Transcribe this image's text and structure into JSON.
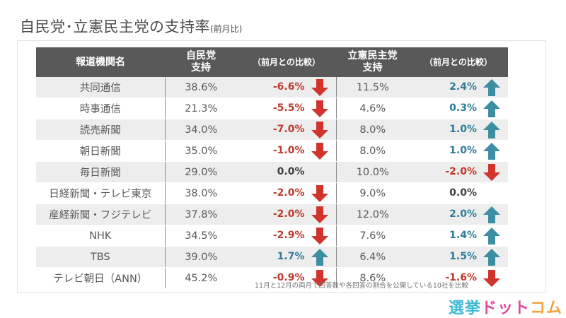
{
  "title": "自民党･立憲民主党の支持率",
  "subtitle": "(前月比)",
  "header": {
    "org": "報道機関名",
    "ldp": "自民党\n支持",
    "ldp_change": "（前月との比較）",
    "cdp": "立憲民主党\n支持",
    "cdp_change": "（前月との比較）"
  },
  "colors": {
    "up": "#3d8ea3",
    "down": "#d0342c",
    "header_bg": "#595959",
    "row_shade": "#ededed"
  },
  "chart_data": {
    "type": "table",
    "columns": [
      "報道機関名",
      "自民党支持",
      "（前月との比較）",
      "立憲民主党支持",
      "（前月との比較）"
    ],
    "rows": [
      {
        "org": "共同通信",
        "ldp": "38.6%",
        "ldp_change": "-6.6%",
        "ldp_dir": "down",
        "cdp": "11.5%",
        "cdp_change": "2.4%",
        "cdp_dir": "up"
      },
      {
        "org": "時事通信",
        "ldp": "21.3%",
        "ldp_change": "-5.5%",
        "ldp_dir": "down",
        "cdp": "4.6%",
        "cdp_change": "0.3%",
        "cdp_dir": "up"
      },
      {
        "org": "読売新聞",
        "ldp": "34.0%",
        "ldp_change": "-7.0%",
        "ldp_dir": "down",
        "cdp": "8.0%",
        "cdp_change": "1.0%",
        "cdp_dir": "up"
      },
      {
        "org": "朝日新聞",
        "ldp": "35.0%",
        "ldp_change": "-1.0%",
        "ldp_dir": "down",
        "cdp": "8.0%",
        "cdp_change": "1.0%",
        "cdp_dir": "up"
      },
      {
        "org": "毎日新聞",
        "ldp": "29.0%",
        "ldp_change": "0.0%",
        "ldp_dir": "none",
        "cdp": "10.0%",
        "cdp_change": "-2.0%",
        "cdp_dir": "down"
      },
      {
        "org": "日経新聞・テレビ東京",
        "ldp": "38.0%",
        "ldp_change": "-2.0%",
        "ldp_dir": "down",
        "cdp": "9.0%",
        "cdp_change": "0.0%",
        "cdp_dir": "none"
      },
      {
        "org": "産経新聞・フジテレビ",
        "ldp": "37.8%",
        "ldp_change": "-2.0%",
        "ldp_dir": "down",
        "cdp": "12.0%",
        "cdp_change": "2.0%",
        "cdp_dir": "up"
      },
      {
        "org": "NHK",
        "ldp": "34.5%",
        "ldp_change": "-2.9%",
        "ldp_dir": "down",
        "cdp": "7.6%",
        "cdp_change": "1.4%",
        "cdp_dir": "up"
      },
      {
        "org": "TBS",
        "ldp": "39.0%",
        "ldp_change": "1.7%",
        "ldp_dir": "up",
        "cdp": "6.4%",
        "cdp_change": "1.5%",
        "cdp_dir": "up"
      },
      {
        "org": "テレビ朝日（ANN）",
        "ldp": "45.2%",
        "ldp_change": "-0.9%",
        "ldp_dir": "down",
        "cdp": "8.6%",
        "cdp_change": "-1.6%",
        "cdp_dir": "down"
      }
    ]
  },
  "footnote": "11月と12月の両月で回答数や各回答の割合を公開している10社を比較",
  "logo": {
    "part1": "選挙",
    "part2": "ドット",
    "part3": "コム"
  }
}
